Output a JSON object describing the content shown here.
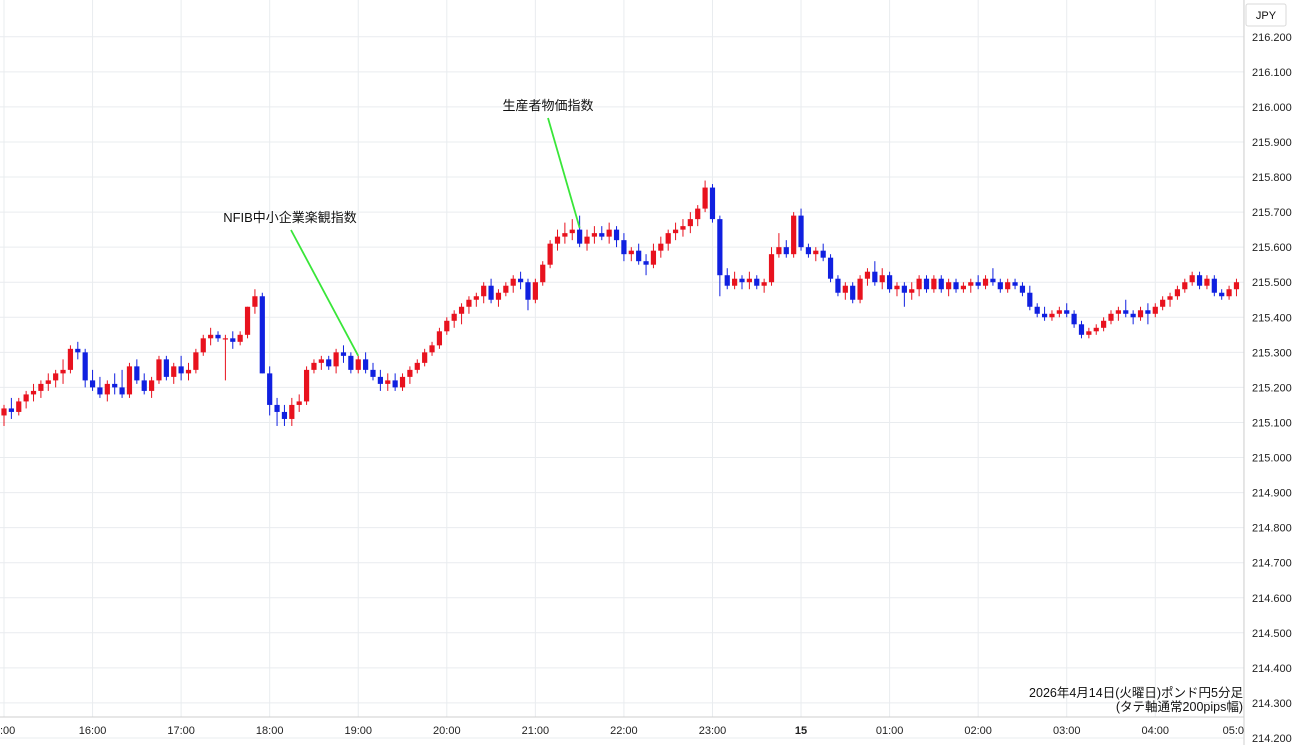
{
  "chart_data": {
    "type": "candlestick",
    "currency_label": "JPY",
    "y_axis": {
      "ylim": [
        214.18,
        216.305
      ],
      "ticks": [
        "216.200",
        "216.100",
        "216.000",
        "215.900",
        "215.800",
        "215.700",
        "215.600",
        "215.500",
        "215.400",
        "215.300",
        "215.200",
        "215.100",
        "215.000",
        "214.900",
        "214.800",
        "214.700",
        "214.600",
        "214.500",
        "214.400",
        "214.300",
        "214.200"
      ]
    },
    "x_axis": {
      "ticks": [
        {
          "label": ":00",
          "t": 0
        },
        {
          "label": "16:00",
          "t": 12
        },
        {
          "label": "17:00",
          "t": 24
        },
        {
          "label": "18:00",
          "t": 36
        },
        {
          "label": "19:00",
          "t": 48
        },
        {
          "label": "20:00",
          "t": 60
        },
        {
          "label": "21:00",
          "t": 72
        },
        {
          "label": "22:00",
          "t": 84
        },
        {
          "label": "23:00",
          "t": 96
        },
        {
          "label": "15",
          "t": 108
        },
        {
          "label": "01:00",
          "t": 120
        },
        {
          "label": "02:00",
          "t": 132
        },
        {
          "label": "03:00",
          "t": 144
        },
        {
          "label": "04:00",
          "t": 156
        },
        {
          "label": "05:0",
          "t": 168
        }
      ],
      "bold_labels": [
        "15"
      ]
    },
    "up_color": "#e8121e",
    "down_color": "#1020e0",
    "grid": true,
    "caption_line1": "2026年4月14日(火曜日)ポンド円5分足",
    "caption_line2": "(タテ軸通常200pips幅)",
    "annotations": [
      {
        "text": "NFIB中小企業楽観指数",
        "target_t": 48,
        "target_price": 215.29
      },
      {
        "text": "生産者物価指数",
        "target_t": 78,
        "target_price": 215.655
      }
    ],
    "candles": [
      [
        215.12,
        215.15,
        215.09,
        215.14
      ],
      [
        215.14,
        215.17,
        215.11,
        215.13
      ],
      [
        215.13,
        215.17,
        215.12,
        215.16
      ],
      [
        215.16,
        215.19,
        215.14,
        215.18
      ],
      [
        215.18,
        215.21,
        215.16,
        215.19
      ],
      [
        215.19,
        215.22,
        215.17,
        215.21
      ],
      [
        215.21,
        215.24,
        215.19,
        215.22
      ],
      [
        215.22,
        215.25,
        215.2,
        215.24
      ],
      [
        215.24,
        215.28,
        215.21,
        215.25
      ],
      [
        215.25,
        215.32,
        215.24,
        215.31
      ],
      [
        215.31,
        215.33,
        215.28,
        215.3
      ],
      [
        215.3,
        215.31,
        215.2,
        215.22
      ],
      [
        215.22,
        215.25,
        215.19,
        215.2
      ],
      [
        215.2,
        215.23,
        215.17,
        215.18
      ],
      [
        215.18,
        215.22,
        215.16,
        215.21
      ],
      [
        215.21,
        215.24,
        215.18,
        215.2
      ],
      [
        215.2,
        215.25,
        215.17,
        215.18
      ],
      [
        215.18,
        215.27,
        215.17,
        215.26
      ],
      [
        215.26,
        215.28,
        215.21,
        215.22
      ],
      [
        215.22,
        215.24,
        215.18,
        215.19
      ],
      [
        215.19,
        215.23,
        215.17,
        215.22
      ],
      [
        215.22,
        215.29,
        215.21,
        215.28
      ],
      [
        215.28,
        215.29,
        215.22,
        215.23
      ],
      [
        215.23,
        215.27,
        215.21,
        215.26
      ],
      [
        215.26,
        215.29,
        215.22,
        215.24
      ],
      [
        215.24,
        215.27,
        215.22,
        215.25
      ],
      [
        215.25,
        215.31,
        215.24,
        215.3
      ],
      [
        215.3,
        215.35,
        215.29,
        215.34
      ],
      [
        215.34,
        215.37,
        215.32,
        215.35
      ],
      [
        215.35,
        215.36,
        215.33,
        215.34
      ],
      [
        215.34,
        215.35,
        215.22,
        215.34
      ],
      [
        215.34,
        215.36,
        215.31,
        215.33
      ],
      [
        215.33,
        215.36,
        215.32,
        215.35
      ],
      [
        215.35,
        215.43,
        215.34,
        215.43
      ],
      [
        215.43,
        215.48,
        215.41,
        215.46
      ],
      [
        215.46,
        215.47,
        215.24,
        215.24
      ],
      [
        215.24,
        215.26,
        215.12,
        215.15
      ],
      [
        215.15,
        215.17,
        215.09,
        215.13
      ],
      [
        215.13,
        215.15,
        215.09,
        215.11
      ],
      [
        215.11,
        215.17,
        215.09,
        215.15
      ],
      [
        215.15,
        215.18,
        215.13,
        215.16
      ],
      [
        215.16,
        215.26,
        215.15,
        215.25
      ],
      [
        215.25,
        215.28,
        215.24,
        215.27
      ],
      [
        215.27,
        215.29,
        215.25,
        215.28
      ],
      [
        215.28,
        215.29,
        215.25,
        215.26
      ],
      [
        215.26,
        215.31,
        215.24,
        215.3
      ],
      [
        215.3,
        215.32,
        215.27,
        215.29
      ],
      [
        215.29,
        215.3,
        215.24,
        215.25
      ],
      [
        215.25,
        215.29,
        215.24,
        215.28
      ],
      [
        215.28,
        215.3,
        215.24,
        215.25
      ],
      [
        215.25,
        215.27,
        215.22,
        215.23
      ],
      [
        215.23,
        215.25,
        215.19,
        215.21
      ],
      [
        215.21,
        215.24,
        215.19,
        215.22
      ],
      [
        215.22,
        215.24,
        215.19,
        215.2
      ],
      [
        215.2,
        215.24,
        215.19,
        215.23
      ],
      [
        215.23,
        215.26,
        215.21,
        215.25
      ],
      [
        215.25,
        215.28,
        215.24,
        215.27
      ],
      [
        215.27,
        215.31,
        215.26,
        215.3
      ],
      [
        215.3,
        215.33,
        215.29,
        215.32
      ],
      [
        215.32,
        215.37,
        215.31,
        215.36
      ],
      [
        215.36,
        215.4,
        215.35,
        215.39
      ],
      [
        215.39,
        215.42,
        215.37,
        215.41
      ],
      [
        215.41,
        215.44,
        215.38,
        215.43
      ],
      [
        215.43,
        215.46,
        215.41,
        215.45
      ],
      [
        215.45,
        215.47,
        215.43,
        215.46
      ],
      [
        215.46,
        215.5,
        215.44,
        215.49
      ],
      [
        215.49,
        215.51,
        215.44,
        215.45
      ],
      [
        215.45,
        215.48,
        215.43,
        215.47
      ],
      [
        215.47,
        215.5,
        215.46,
        215.49
      ],
      [
        215.49,
        215.52,
        215.47,
        215.51
      ],
      [
        215.51,
        215.53,
        215.48,
        215.5
      ],
      [
        215.5,
        215.51,
        215.42,
        215.45
      ],
      [
        215.45,
        215.51,
        215.44,
        215.5
      ],
      [
        215.5,
        215.56,
        215.49,
        215.55
      ],
      [
        215.55,
        215.62,
        215.54,
        215.61
      ],
      [
        215.61,
        215.65,
        215.59,
        215.63
      ],
      [
        215.63,
        215.67,
        215.61,
        215.64
      ],
      [
        215.64,
        215.68,
        215.62,
        215.65
      ],
      [
        215.65,
        215.69,
        215.6,
        215.61
      ],
      [
        215.61,
        215.65,
        215.59,
        215.63
      ],
      [
        215.63,
        215.66,
        215.61,
        215.64
      ],
      [
        215.64,
        215.66,
        215.62,
        215.63
      ],
      [
        215.63,
        215.67,
        215.61,
        215.65
      ],
      [
        215.65,
        215.66,
        215.6,
        215.62
      ],
      [
        215.62,
        215.64,
        215.56,
        215.58
      ],
      [
        215.58,
        215.6,
        215.56,
        215.59
      ],
      [
        215.59,
        215.61,
        215.55,
        215.56
      ],
      [
        215.56,
        215.58,
        215.52,
        215.55
      ],
      [
        215.55,
        215.61,
        215.54,
        215.59
      ],
      [
        215.59,
        215.63,
        215.57,
        215.61
      ],
      [
        215.61,
        215.65,
        215.59,
        215.64
      ],
      [
        215.64,
        215.67,
        215.62,
        215.65
      ],
      [
        215.65,
        215.68,
        215.63,
        215.66
      ],
      [
        215.66,
        215.7,
        215.64,
        215.68
      ],
      [
        215.68,
        215.72,
        215.66,
        215.71
      ],
      [
        215.71,
        215.79,
        215.7,
        215.77
      ],
      [
        215.77,
        215.78,
        215.67,
        215.68
      ],
      [
        215.68,
        215.69,
        215.46,
        215.52
      ],
      [
        215.52,
        215.54,
        215.48,
        215.49
      ],
      [
        215.49,
        215.53,
        215.48,
        215.51
      ],
      [
        215.51,
        215.52,
        215.48,
        215.5
      ],
      [
        215.5,
        215.53,
        215.48,
        215.51
      ],
      [
        215.51,
        215.52,
        215.48,
        215.49
      ],
      [
        215.49,
        215.51,
        215.47,
        215.5
      ],
      [
        215.5,
        215.6,
        215.49,
        215.58
      ],
      [
        215.58,
        215.64,
        215.57,
        215.6
      ],
      [
        215.6,
        215.62,
        215.57,
        215.58
      ],
      [
        215.58,
        215.7,
        215.57,
        215.69
      ],
      [
        215.69,
        215.71,
        215.59,
        215.6
      ],
      [
        215.6,
        215.61,
        215.57,
        215.58
      ],
      [
        215.58,
        215.6,
        215.56,
        215.59
      ],
      [
        215.59,
        215.61,
        215.56,
        215.57
      ],
      [
        215.57,
        215.58,
        215.5,
        215.51
      ],
      [
        215.51,
        215.52,
        215.46,
        215.47
      ],
      [
        215.47,
        215.5,
        215.45,
        215.49
      ],
      [
        215.49,
        215.5,
        215.44,
        215.45
      ],
      [
        215.45,
        215.52,
        215.44,
        215.51
      ],
      [
        215.51,
        215.54,
        215.49,
        215.53
      ],
      [
        215.53,
        215.56,
        215.49,
        215.5
      ],
      [
        215.5,
        215.54,
        215.48,
        215.52
      ],
      [
        215.52,
        215.53,
        215.47,
        215.48
      ],
      [
        215.48,
        215.5,
        215.46,
        215.49
      ],
      [
        215.49,
        215.5,
        215.43,
        215.47
      ],
      [
        215.47,
        215.5,
        215.45,
        215.48
      ],
      [
        215.48,
        215.52,
        215.46,
        215.51
      ],
      [
        215.51,
        215.52,
        215.47,
        215.48
      ],
      [
        215.48,
        215.52,
        215.47,
        215.51
      ],
      [
        215.51,
        215.52,
        215.47,
        215.48
      ],
      [
        215.48,
        215.51,
        215.46,
        215.5
      ],
      [
        215.5,
        215.51,
        215.47,
        215.48
      ],
      [
        215.48,
        215.5,
        215.47,
        215.49
      ],
      [
        215.49,
        215.51,
        215.47,
        215.5
      ],
      [
        215.5,
        215.52,
        215.48,
        215.49
      ],
      [
        215.49,
        215.52,
        215.48,
        215.51
      ],
      [
        215.51,
        215.54,
        215.49,
        215.5
      ],
      [
        215.5,
        215.51,
        215.47,
        215.48
      ],
      [
        215.48,
        215.51,
        215.47,
        215.5
      ],
      [
        215.5,
        215.51,
        215.48,
        215.49
      ],
      [
        215.49,
        215.5,
        215.46,
        215.47
      ],
      [
        215.47,
        215.49,
        215.42,
        215.43
      ],
      [
        215.43,
        215.44,
        215.4,
        215.41
      ],
      [
        215.41,
        215.43,
        215.39,
        215.4
      ],
      [
        215.4,
        215.42,
        215.39,
        215.41
      ],
      [
        215.41,
        215.43,
        215.4,
        215.42
      ],
      [
        215.42,
        215.44,
        215.4,
        215.41
      ],
      [
        215.41,
        215.42,
        215.37,
        215.38
      ],
      [
        215.38,
        215.39,
        215.34,
        215.35
      ],
      [
        215.35,
        215.37,
        215.34,
        215.36
      ],
      [
        215.36,
        215.38,
        215.35,
        215.37
      ],
      [
        215.37,
        215.4,
        215.36,
        215.39
      ],
      [
        215.39,
        215.42,
        215.38,
        215.41
      ],
      [
        215.41,
        215.43,
        215.39,
        215.42
      ],
      [
        215.42,
        215.45,
        215.4,
        215.41
      ],
      [
        215.41,
        215.42,
        215.38,
        215.4
      ],
      [
        215.4,
        215.43,
        215.39,
        215.42
      ],
      [
        215.42,
        215.44,
        215.38,
        215.41
      ],
      [
        215.41,
        215.44,
        215.4,
        215.43
      ],
      [
        215.43,
        215.46,
        215.42,
        215.45
      ],
      [
        215.45,
        215.47,
        215.43,
        215.46
      ],
      [
        215.46,
        215.49,
        215.45,
        215.48
      ],
      [
        215.48,
        215.51,
        215.47,
        215.5
      ],
      [
        215.5,
        215.53,
        215.49,
        215.52
      ],
      [
        215.52,
        215.53,
        215.48,
        215.49
      ],
      [
        215.49,
        215.52,
        215.48,
        215.51
      ],
      [
        215.51,
        215.52,
        215.46,
        215.47
      ],
      [
        215.47,
        215.48,
        215.45,
        215.46
      ],
      [
        215.46,
        215.49,
        215.45,
        215.48
      ],
      [
        215.48,
        215.51,
        215.46,
        215.5
      ]
    ]
  }
}
